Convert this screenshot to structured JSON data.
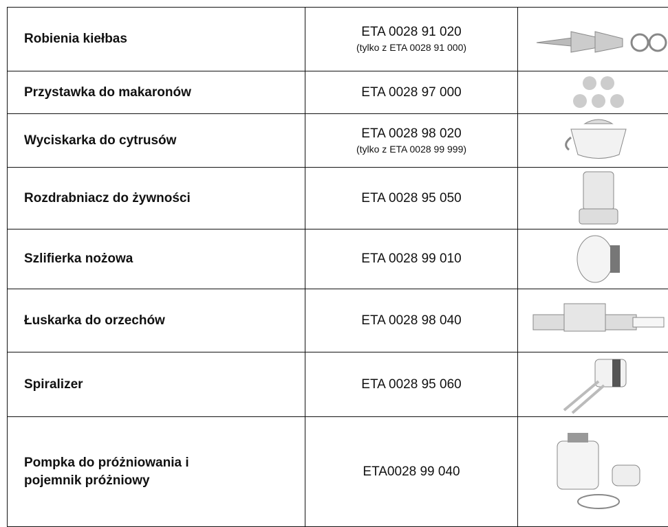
{
  "table": {
    "rows": [
      {
        "name": "Robienia kiełbas",
        "code": "ETA 0028 91 020",
        "note": "(tylko z ETA 0028 91 000)"
      },
      {
        "name": "Przystawka do makaronów",
        "code": "ETA 0028 97 000"
      },
      {
        "name": "Wyciskarka do cytrusów",
        "code": "ETA 0028 98 020",
        "note": "(tylko z ETA 0028 99 999)"
      },
      {
        "name": "Rozdrabniacz do żywności",
        "code": "ETA 0028 95 050"
      },
      {
        "name": "Szlifierka nożowa",
        "code": "ETA 0028 99 010"
      },
      {
        "name": "Łuskarka do orzechów",
        "code": "ETA 0028 98 040"
      },
      {
        "name": "Spiralizer",
        "code": "ETA 0028 95 060"
      },
      {
        "name": "Pompka do próżniowania i pojemnik próżniowy",
        "code": "ETA0028 99 040"
      }
    ]
  }
}
